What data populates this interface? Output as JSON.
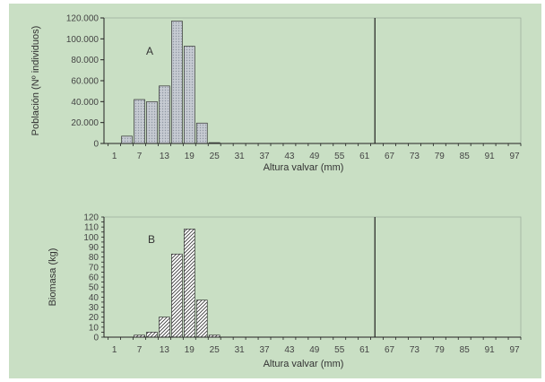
{
  "chart_data": [
    {
      "type": "bar",
      "panel_label": "A",
      "xlabel": "Altura valvar (mm)",
      "ylabel": "Población (Nº individuos)",
      "ylim": [
        0,
        120000
      ],
      "yticks": [
        "0",
        "20.000",
        "40.000",
        "60.000",
        "80.000",
        "100.000",
        "120.000"
      ],
      "ytick_values": [
        0,
        20000,
        40000,
        60000,
        80000,
        100000,
        120000
      ],
      "xtick_labels": [
        "1",
        "7",
        "13",
        "19",
        "25",
        "31",
        "37",
        "43",
        "49",
        "55",
        "61",
        "67",
        "73",
        "79",
        "85",
        "91",
        "97"
      ],
      "bin_start": 1,
      "bin_width": 3,
      "values": [
        0,
        7000,
        42000,
        40000,
        55000,
        117000,
        93000,
        19500,
        800
      ],
      "reference_line_x": 65,
      "bar_fill": "#c8ccd0",
      "bar_pattern": "dotted",
      "grid": false
    },
    {
      "type": "bar",
      "panel_label": "B",
      "xlabel": "Altura valvar (mm)",
      "ylabel": "Biomasa (kg)",
      "ylim": [
        0,
        120
      ],
      "yticks": [
        "0",
        "5",
        "10",
        "15",
        "20",
        "25",
        "30",
        "35",
        "40",
        "45",
        "50",
        "55",
        "60",
        "65",
        "70",
        "75",
        "80",
        "85",
        "90",
        "95",
        "100",
        "105",
        "110",
        "115",
        "120"
      ],
      "ytick_labels_shown": [
        "0",
        "10",
        "20",
        "30",
        "40",
        "50",
        "60",
        "70",
        "80",
        "90",
        "100",
        "110",
        "120"
      ],
      "xtick_labels": [
        "1",
        "7",
        "13",
        "19",
        "25",
        "31",
        "37",
        "43",
        "49",
        "55",
        "61",
        "67",
        "73",
        "79",
        "85",
        "91",
        "97"
      ],
      "bin_start": 1,
      "bin_width": 3,
      "values": [
        0,
        0,
        2,
        5,
        20,
        83,
        108,
        37,
        2
      ],
      "reference_line_x": 65,
      "bar_fill": "#ffffff",
      "bar_pattern": "hatched",
      "grid": false
    }
  ]
}
